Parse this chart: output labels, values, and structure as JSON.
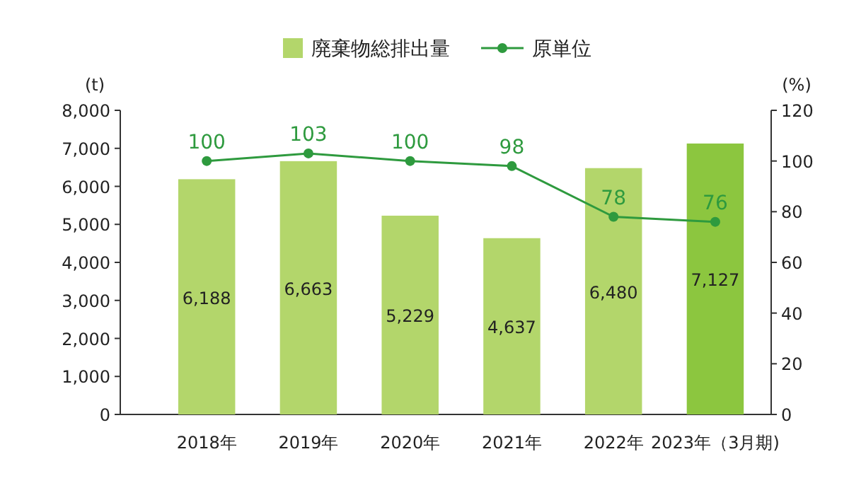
{
  "chart_data": {
    "type": "bar",
    "categories": [
      "2018年",
      "2019年",
      "2020年",
      "2021年",
      "2022年",
      "2023年（3月期)"
    ],
    "series": [
      {
        "name": "廃棄物総排出量",
        "color": "#b3d66b",
        "colors": [
          "#b3d66b",
          "#b3d66b",
          "#b3d66b",
          "#b3d66b",
          "#b3d66b",
          "#8cc63f"
        ],
        "values": [
          6188,
          6663,
          5229,
          4637,
          6480,
          7127
        ],
        "value_labels": [
          "6,188",
          "6,663",
          "5,229",
          "4,637",
          "6,480",
          "7,127"
        ]
      },
      {
        "name": "原単位",
        "type": "line",
        "axis": "y2",
        "color": "#2e9a3e",
        "marker": "circle",
        "values": [
          100,
          103,
          100,
          98,
          78,
          76
        ],
        "value_labels": [
          "100",
          "103",
          "100",
          "98",
          "78",
          "76"
        ]
      }
    ],
    "ylabel": "(t)",
    "y2label": "(%)",
    "ylim": [
      0,
      8000
    ],
    "yticks": [
      {
        "value": 0,
        "label": "0"
      },
      {
        "value": 1000,
        "label": "1,000"
      },
      {
        "value": 2000,
        "label": "2,000"
      },
      {
        "value": 3000,
        "label": "3,000"
      },
      {
        "value": 4000,
        "label": "4,000"
      },
      {
        "value": 5000,
        "label": "5,000"
      },
      {
        "value": 6000,
        "label": "6,000"
      },
      {
        "value": 7000,
        "label": "7,000"
      },
      {
        "value": 8000,
        "label": "8,000"
      }
    ],
    "y2lim": [
      0,
      120
    ],
    "y2ticks": [
      0,
      20,
      40,
      60,
      80,
      100,
      120
    ],
    "grid": false,
    "legend": "top"
  }
}
